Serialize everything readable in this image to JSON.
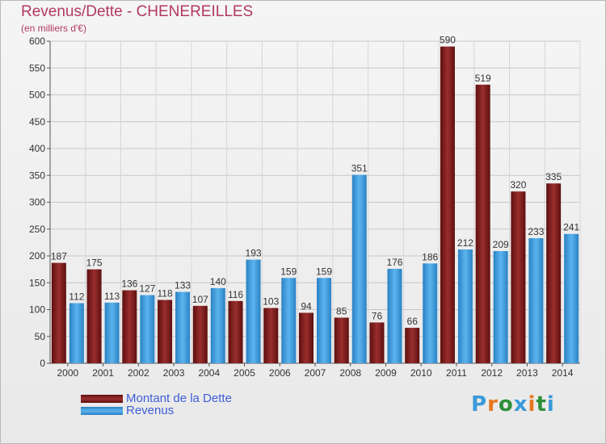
{
  "title": "Revenus/Dette - CHENEREILLES",
  "subtitle": "(en milliers d'€)",
  "colors": {
    "dette": "#7a1a1a",
    "revenus": "#3d9be0",
    "title": "#b23a5f",
    "legend_text": "#3d5ed8"
  },
  "chart_data": {
    "type": "bar",
    "categories": [
      "2000",
      "2001",
      "2002",
      "2003",
      "2004",
      "2005",
      "2006",
      "2007",
      "2008",
      "2009",
      "2010",
      "2011",
      "2012",
      "2013",
      "2014"
    ],
    "series": [
      {
        "name": "Montant de la Dette",
        "values": [
          187,
          175,
          136,
          118,
          107,
          116,
          103,
          94,
          85,
          76,
          66,
          590,
          519,
          320,
          335
        ]
      },
      {
        "name": "Revenus",
        "values": [
          112,
          113,
          127,
          133,
          140,
          193,
          159,
          159,
          351,
          176,
          186,
          212,
          209,
          233,
          241
        ]
      }
    ],
    "ylim": [
      0,
      600
    ],
    "yticks": [
      0,
      50,
      100,
      150,
      200,
      250,
      300,
      350,
      400,
      450,
      500,
      550,
      600
    ],
    "grid": true,
    "legend": "bottom-left"
  },
  "logo": {
    "text": "Proxiti",
    "colors": [
      "#3a9ad9",
      "#e8771e",
      "#2f8f3a",
      "#3a9ad9",
      "#e8771e",
      "#2f8f3a",
      "#3a9ad9"
    ]
  }
}
